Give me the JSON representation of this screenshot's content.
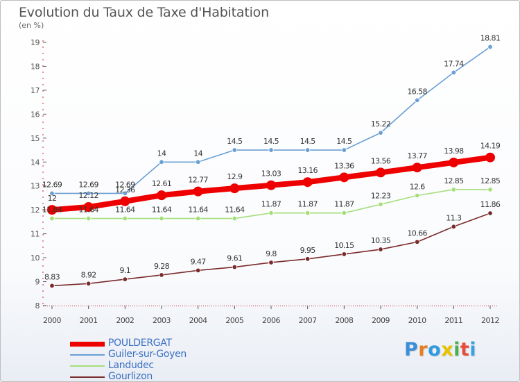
{
  "chart_data": {
    "type": "line",
    "title": "Evolution du Taux de Taxe d'Habitation",
    "subtitle": "(en %)",
    "x": [
      "2000",
      "2001",
      "2002",
      "2003",
      "2004",
      "2005",
      "2006",
      "2007",
      "2008",
      "2009",
      "2010",
      "2011",
      "2012"
    ],
    "ylim": [
      8,
      19
    ],
    "yticks": [
      8,
      9,
      10,
      11,
      12,
      13,
      14,
      15,
      16,
      17,
      18,
      19
    ],
    "grid": false,
    "legend_position": "bottom-left",
    "series": [
      {
        "name": "POULDERGAT",
        "color": "#ee0000",
        "values": [
          12,
          12.12,
          12.36,
          12.61,
          12.77,
          12.9,
          13.03,
          13.16,
          13.36,
          13.56,
          13.77,
          13.98,
          14.19
        ],
        "labels": [
          "12",
          "12.12",
          "12.36",
          "12.61",
          "12.77",
          "12.9",
          "13.03",
          "13.16",
          "13.36",
          "13.56",
          "13.77",
          "13.98",
          "14.19"
        ]
      },
      {
        "name": "Guiler-sur-Goyen",
        "color": "#6a9fd4",
        "values": [
          12.69,
          12.69,
          12.69,
          14,
          14,
          14.5,
          14.5,
          14.5,
          14.5,
          15.22,
          16.58,
          17.74,
          18.81
        ],
        "labels": [
          "12.69",
          "12.69",
          "12.69",
          "14",
          "14",
          "14.5",
          "14.5",
          "14.5",
          "14.5",
          "15.22",
          "16.58",
          "17.74",
          "18.81"
        ]
      },
      {
        "name": "Landudec",
        "color": "#a4de7a",
        "values": [
          11.64,
          11.64,
          11.64,
          11.64,
          11.64,
          11.64,
          11.87,
          11.87,
          11.87,
          12.23,
          12.6,
          12.85,
          12.85
        ],
        "labels": [
          "11.64",
          "11.64",
          "11.64",
          "11.64",
          "11.64",
          "11.64",
          "11.87",
          "11.87",
          "11.87",
          "12.23",
          "12.6",
          "12.85",
          "12.85"
        ]
      },
      {
        "name": "Gourlizon",
        "color": "#7a2a2a",
        "values": [
          8.83,
          8.92,
          9.1,
          9.28,
          9.47,
          9.61,
          9.8,
          9.95,
          10.15,
          10.35,
          10.66,
          11.3,
          11.86
        ],
        "labels": [
          "8.83",
          "8.92",
          "9.1",
          "9.28",
          "9.47",
          "9.61",
          "9.8",
          "9.95",
          "10.15",
          "10.35",
          "10.66",
          "11.3",
          "11.86"
        ]
      }
    ]
  },
  "logo": {
    "letters": [
      "P",
      "r",
      "o",
      "x",
      "i",
      "t",
      "i"
    ],
    "colors": [
      "#3a8fd8",
      "#e67e22",
      "#2e9be0",
      "#e8c100",
      "#4caf50",
      "#e74c3c",
      "#3aa0e0"
    ]
  }
}
